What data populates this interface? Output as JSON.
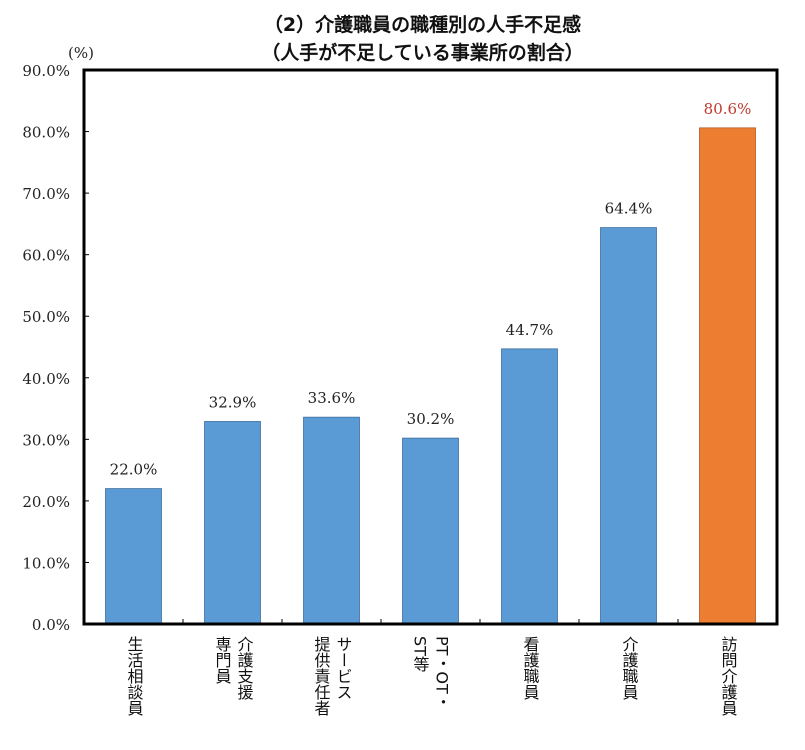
{
  "chart_data": {
    "type": "bar",
    "title": "（2）介護職員の職種別の人手不足感",
    "subtitle": "（人手が不足している事業所の割合）",
    "ylabel": "(%)",
    "ylim": [
      0,
      90
    ],
    "yticks": [
      "0.0%",
      "10.0%",
      "20.0%",
      "30.0%",
      "40.0%",
      "50.0%",
      "60.0%",
      "70.0%",
      "80.0%",
      "90.0%"
    ],
    "categories": [
      "生活\n相談員",
      "介護支援\n専門員",
      "サービス\n提供責任者",
      "PT・OT・\nST等",
      "看護\n職員",
      "介護\n職員",
      "訪問\n介護員"
    ],
    "category_labels": [
      "生活相談員",
      "介護支援\n専門員",
      "サービス\n提供責任者",
      "PT・OT・\nST等",
      "看護職員",
      "介護職員",
      "訪問介護員"
    ],
    "values": [
      22.0,
      32.9,
      33.6,
      30.2,
      44.7,
      64.4,
      80.6
    ],
    "data_labels": [
      "22.0%",
      "32.9%",
      "33.6%",
      "30.2%",
      "44.7%",
      "64.4%",
      "80.6%"
    ],
    "highlight_index": 6,
    "colors": {
      "bar": "#5B9BD5",
      "highlight": "#ED7D31",
      "highlight_label": "#C0392B",
      "label": "#222222"
    },
    "grid": false,
    "legend": "none"
  }
}
